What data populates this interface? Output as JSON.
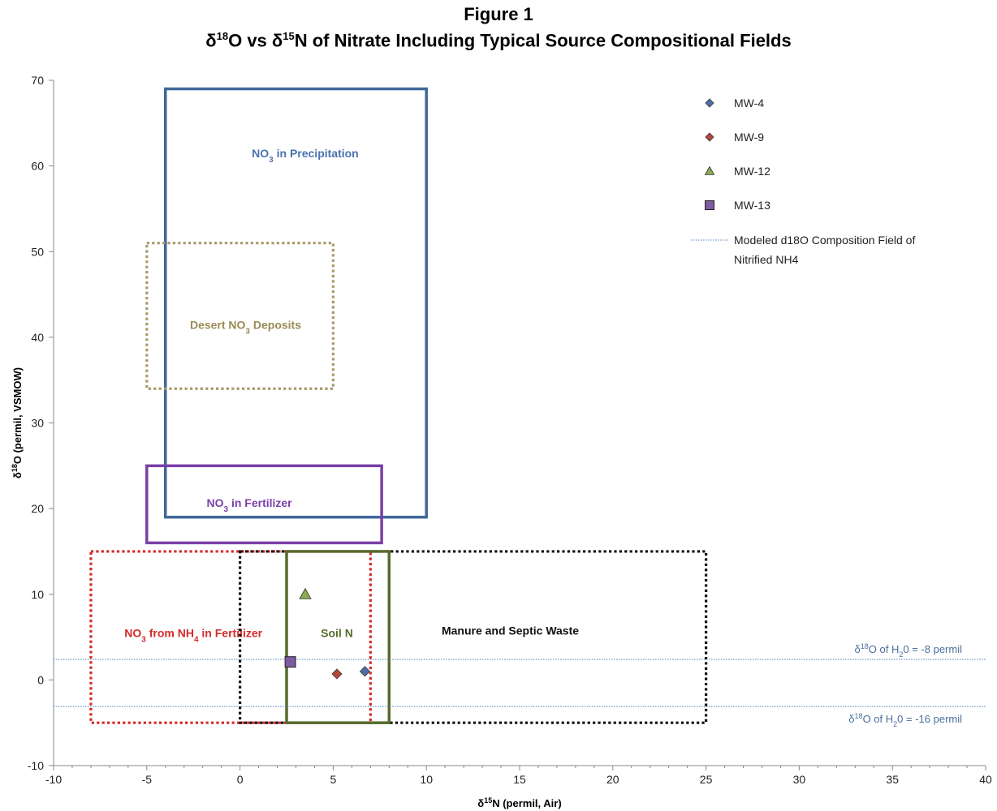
{
  "figure": {
    "label": "Figure 1",
    "title_parts": [
      {
        "t": "δ",
        "sup": false
      },
      {
        "t": "18",
        "sup": true
      },
      {
        "t": "O vs δ",
        "sup": false
      },
      {
        "t": "15",
        "sup": true
      },
      {
        "t": "N of Nitrate Including Typical Source Compositional Fields",
        "sup": false
      }
    ]
  },
  "chart_data": {
    "type": "scatter",
    "xlabel": {
      "delta": "δ",
      "sup": "15",
      "rest": "N (permil, Air)"
    },
    "ylabel": {
      "delta": "δ",
      "sup": "18",
      "rest": "O (permil, VSMOW)"
    },
    "xlim": [
      -10,
      40
    ],
    "ylim": [
      -10,
      70
    ],
    "xticks": [
      -10,
      -5,
      0,
      5,
      10,
      15,
      20,
      25,
      30,
      35,
      40
    ],
    "yticks": [
      -10,
      0,
      10,
      20,
      30,
      40,
      50,
      60,
      70
    ],
    "grid": false,
    "legend_position": "top-right",
    "series": [
      {
        "name": "MW-4",
        "marker": "diamond",
        "color": "#4f6fa8",
        "points": [
          [
            6.7,
            1.0
          ]
        ]
      },
      {
        "name": "MW-9",
        "marker": "diamond",
        "color": "#b5473a",
        "points": [
          [
            5.2,
            0.7
          ]
        ]
      },
      {
        "name": "MW-12",
        "marker": "triangle",
        "color": "#8aaa4e",
        "points": [
          [
            3.5,
            10.0
          ]
        ]
      },
      {
        "name": "MW-13",
        "marker": "square",
        "color": "#7e5aa0",
        "points": [
          [
            2.7,
            2.1
          ]
        ]
      }
    ],
    "modeled_field_legend": [
      "Modeled d18O Composition Field of",
      "Nitrified NH4"
    ],
    "horizontal_lines": [
      {
        "y": 2.4,
        "color": "#4f81bd",
        "label": {
          "delta": "δ",
          "sup": "18",
          "mid": "O of H",
          "sub": "2",
          "rest": "0 = -8 permil"
        }
      },
      {
        "y": -3.1,
        "color": "#4f81bd",
        "label": {
          "delta": "δ",
          "sup": "18",
          "mid": "O of H",
          "sub": "2",
          "rest": "0 = -16 permil"
        }
      }
    ],
    "fields": [
      {
        "name_parts": [
          {
            "t": "NO",
            "s": ""
          },
          {
            "t": "3",
            "s": "sub"
          },
          {
            "t": " in Precipitation",
            "s": ""
          }
        ],
        "x": [
          -4,
          10
        ],
        "y": [
          19,
          69
        ],
        "style": "solid",
        "color": "#41679a",
        "label_color": "#4a72b0",
        "label_at": [
          3.5,
          61
        ]
      },
      {
        "name_parts": [
          {
            "t": "Desert NO",
            "s": ""
          },
          {
            "t": "3",
            "s": "sub"
          },
          {
            "t": " Deposits",
            "s": ""
          }
        ],
        "x": [
          -5,
          5
        ],
        "y": [
          34,
          51
        ],
        "style": "dotted",
        "color": "#a89a6a",
        "label_color": "#9b8a55",
        "label_at": [
          0.3,
          41
        ]
      },
      {
        "name_parts": [
          {
            "t": "NO",
            "s": ""
          },
          {
            "t": "3",
            "s": "sub"
          },
          {
            "t": " in Fertilizer",
            "s": ""
          }
        ],
        "x": [
          -5,
          7.6
        ],
        "y": [
          16,
          25
        ],
        "style": "solid",
        "color": "#7b3fa8",
        "label_color": "#7b3fa8",
        "label_at": [
          0.5,
          20.2
        ]
      },
      {
        "name_parts": [
          {
            "t": "NO",
            "s": ""
          },
          {
            "t": "3",
            "s": "sub"
          },
          {
            "t": " from NH",
            "s": ""
          },
          {
            "t": "4",
            "s": "sub"
          },
          {
            "t": " in Fertilizer",
            "s": ""
          }
        ],
        "x": [
          -8,
          7
        ],
        "y": [
          -5,
          15
        ],
        "style": "dotted",
        "color": "#d42a2a",
        "label_color": "#d42a2a",
        "label_at": [
          -2.5,
          5
        ],
        "label_anchor": "middle"
      },
      {
        "name_parts": [
          {
            "t": "Manure and Septic Waste",
            "s": ""
          }
        ],
        "x": [
          0,
          25
        ],
        "y": [
          -5,
          15
        ],
        "style": "dotted",
        "color": "#111111",
        "label_color": "#111111",
        "label_at": [
          14.5,
          5.3
        ]
      },
      {
        "name_parts": [
          {
            "t": "Soil N",
            "s": ""
          }
        ],
        "x": [
          2.5,
          8
        ],
        "y": [
          -5,
          15
        ],
        "style": "solid",
        "color": "#566c2e",
        "label_color": "#566c2e",
        "label_at": [
          5.2,
          5
        ]
      }
    ]
  }
}
